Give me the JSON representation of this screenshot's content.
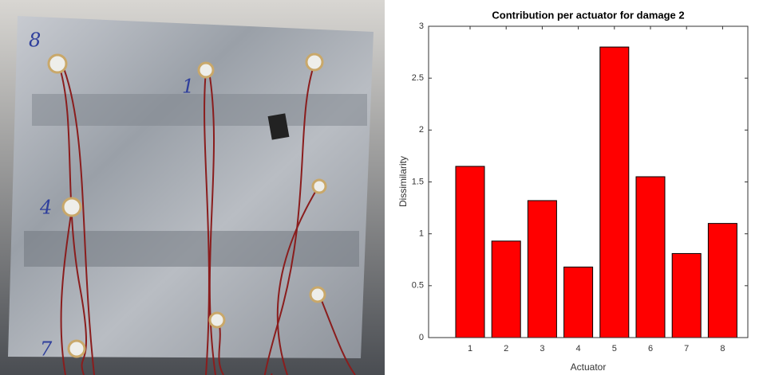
{
  "photo": {
    "labels": [
      "8",
      "1",
      "4",
      "7"
    ]
  },
  "chart_data": {
    "type": "bar",
    "title": "Contribution per actuator for damage 2",
    "x_label": "Actuator",
    "y_label": "Dissimilarity",
    "categories": [
      "1",
      "2",
      "3",
      "4",
      "5",
      "6",
      "7",
      "8"
    ],
    "values": [
      1.65,
      0.93,
      1.32,
      0.68,
      2.8,
      1.55,
      0.81,
      1.1
    ],
    "color": "#ff0000",
    "ylim": [
      0,
      3
    ],
    "yticks": [
      0,
      0.5,
      1,
      1.5,
      2,
      2.5,
      3
    ]
  }
}
